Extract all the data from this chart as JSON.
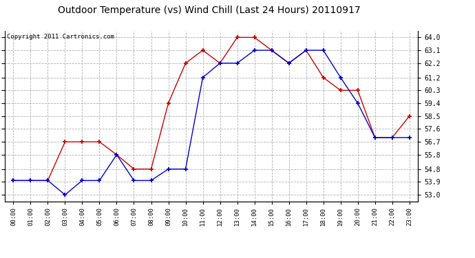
{
  "title": "Outdoor Temperature (vs) Wind Chill (Last 24 Hours) 20110917",
  "copyright": "Copyright 2011 Cartronics.com",
  "x_labels": [
    "00:00",
    "01:00",
    "02:00",
    "03:00",
    "04:00",
    "05:00",
    "06:00",
    "07:00",
    "08:00",
    "09:00",
    "10:00",
    "11:00",
    "12:00",
    "13:00",
    "14:00",
    "15:00",
    "16:00",
    "17:00",
    "18:00",
    "19:00",
    "20:00",
    "21:00",
    "22:00",
    "23:00"
  ],
  "temp_red": [
    54.0,
    54.0,
    54.0,
    56.7,
    56.7,
    56.7,
    55.8,
    54.8,
    54.8,
    59.4,
    62.2,
    63.1,
    62.2,
    64.0,
    64.0,
    63.1,
    62.2,
    63.1,
    61.2,
    60.3,
    60.3,
    57.0,
    57.0,
    58.5
  ],
  "wind_chill_blue": [
    54.0,
    54.0,
    54.0,
    53.0,
    54.0,
    54.0,
    55.8,
    54.0,
    54.0,
    54.8,
    54.8,
    61.2,
    62.2,
    62.2,
    63.1,
    63.1,
    62.2,
    63.1,
    63.1,
    61.2,
    59.4,
    57.0,
    57.0,
    57.0
  ],
  "y_ticks": [
    53.0,
    53.9,
    54.8,
    55.8,
    56.7,
    57.6,
    58.5,
    59.4,
    60.3,
    61.2,
    62.2,
    63.1,
    64.0
  ],
  "ylim": [
    52.55,
    64.45
  ],
  "red_color": "#cc0000",
  "blue_color": "#0000cc",
  "background_color": "#ffffff",
  "grid_color": "#b0b0b0",
  "title_fontsize": 10,
  "copyright_fontsize": 6.5
}
